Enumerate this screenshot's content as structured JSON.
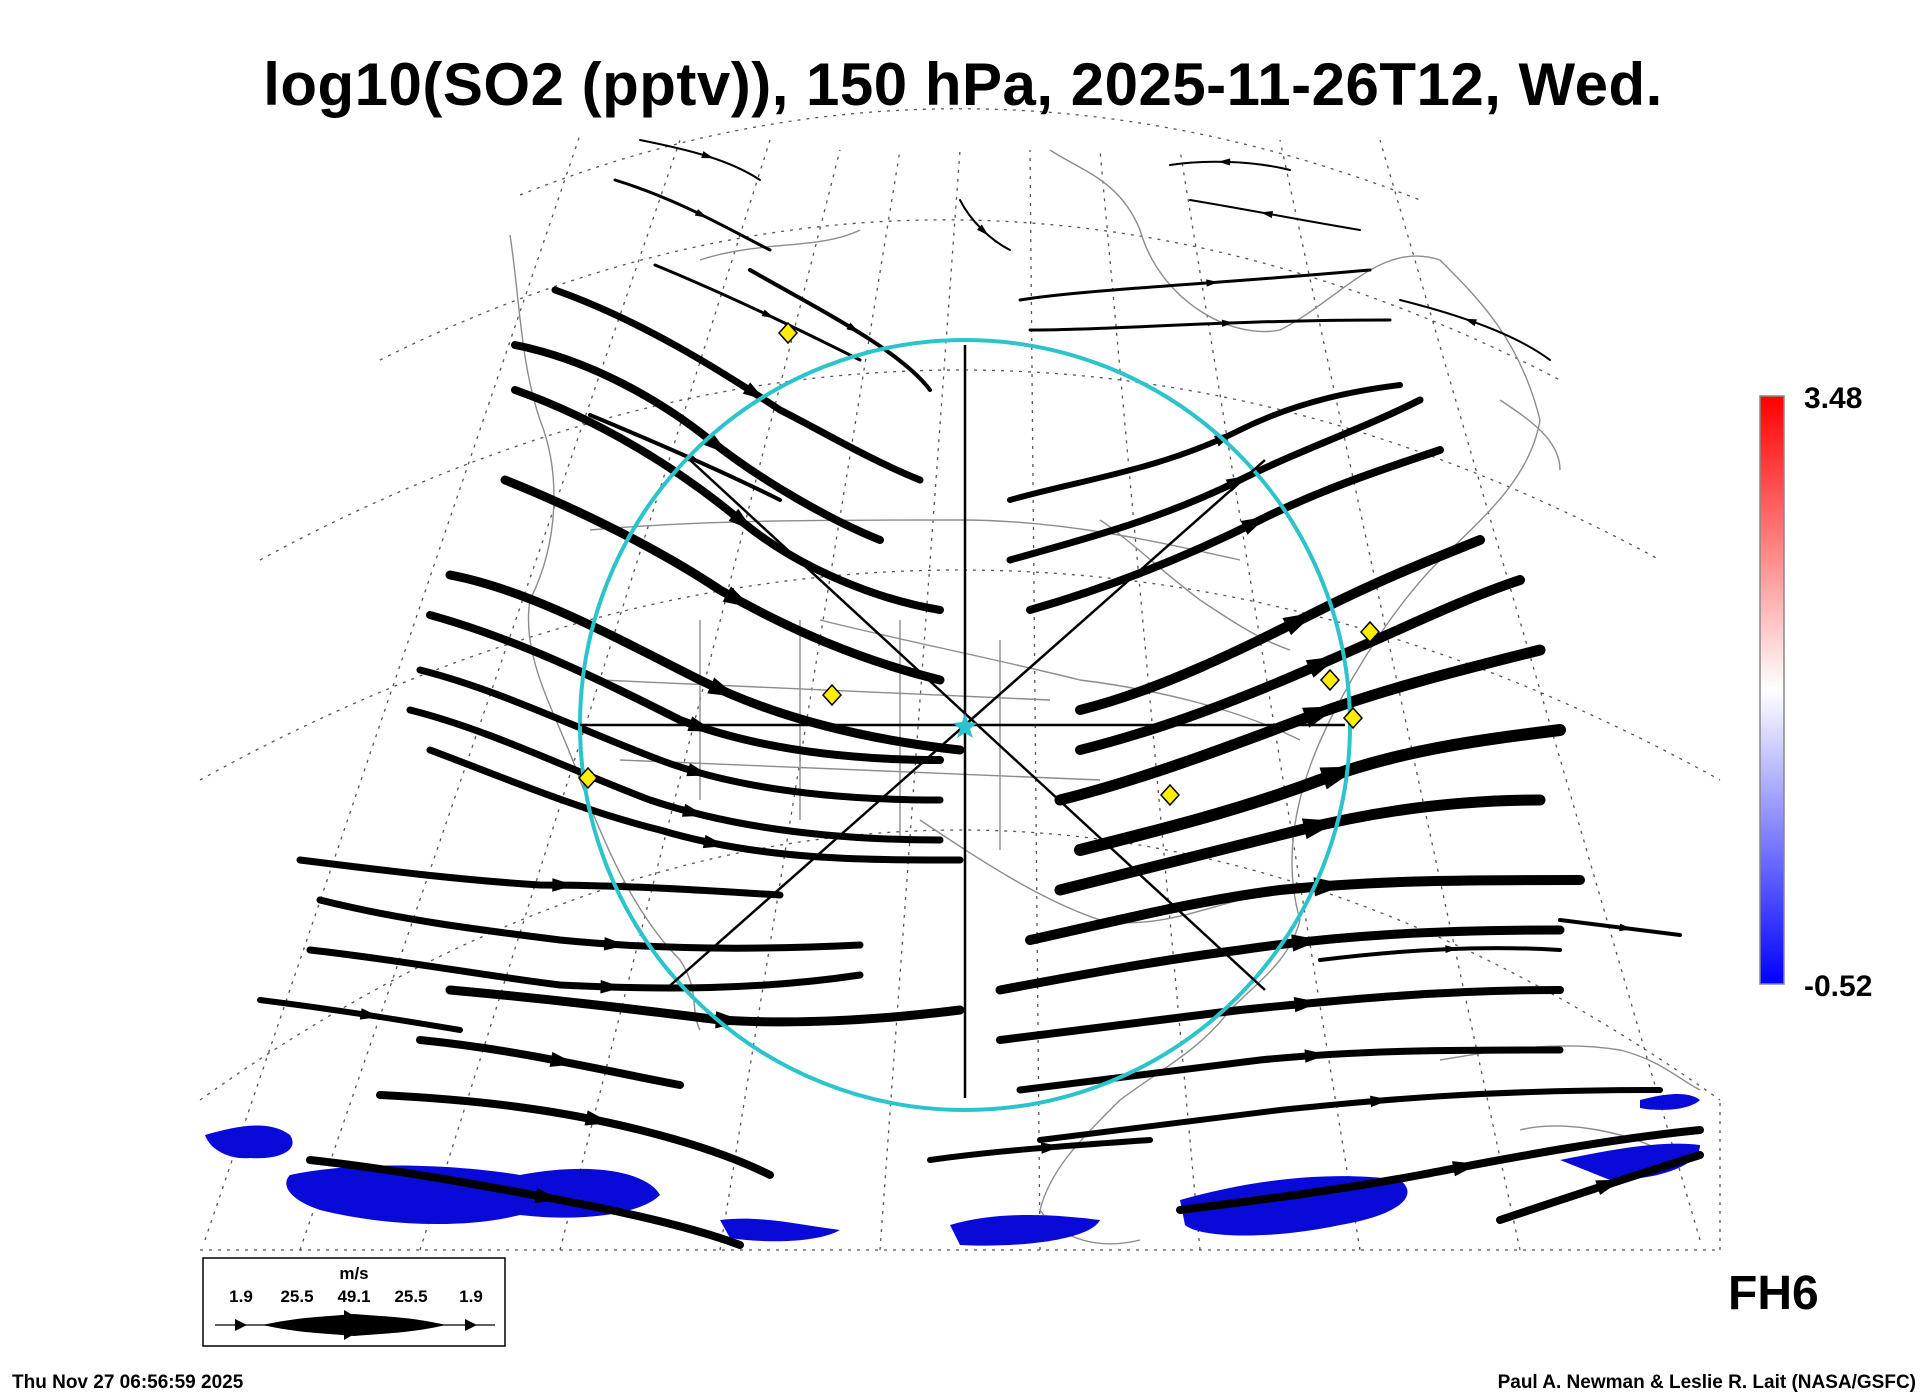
{
  "title": "log10(SO2 (pptv)), 150 hPa, 2025-11-26T12, Wed.",
  "colorbar": {
    "max_label": "3.48",
    "min_label": "-0.52",
    "max_color": "#ff0000",
    "mid_color": "#ffffff",
    "min_color": "#0000ff"
  },
  "wind_legend": {
    "unit": "m/s",
    "speeds": [
      "1.9",
      "25.5",
      "49.1",
      "25.5",
      "1.9"
    ]
  },
  "forecast_hour": "FH6",
  "timestamp": "Thu Nov 27 06:56:59 2025",
  "credit": "Paul A. Newman & Leslie R. Lait (NASA/GSFC)",
  "colors": {
    "streamline": "#000000",
    "range_ring": "#2cc4cc",
    "site_marker": "#ffee00",
    "so2_low": "#0a0ad8",
    "boundaries": "#8c8c8c"
  },
  "icons": [
    "site-marker-diamond",
    "center-star-icon",
    "wind-arrow-icon"
  ]
}
